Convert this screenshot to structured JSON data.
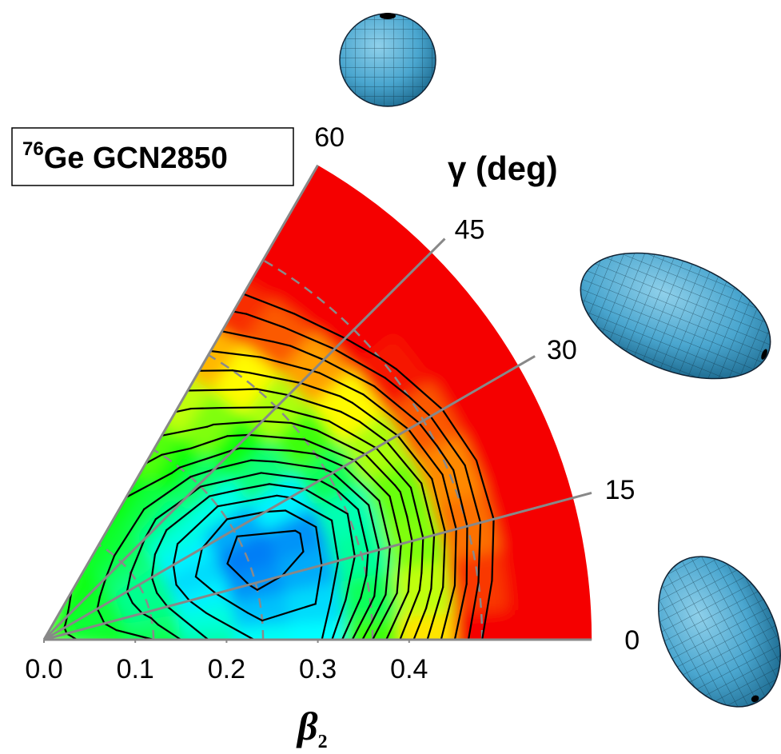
{
  "chart_data": {
    "type": "polar_contour",
    "title": {
      "mass": "76",
      "text": "Ge GCN2850"
    },
    "x_label": {
      "symbol": "β",
      "sub": "2"
    },
    "y_label": "γ (deg)",
    "xlim": [
      0,
      0.6
    ],
    "xticks": [
      {
        "value": 0,
        "label": "0.0"
      },
      0.1,
      0.2,
      0.3,
      0.4
    ],
    "ylim": [
      0,
      60
    ],
    "yticks": [
      0,
      15,
      30,
      45,
      60
    ],
    "reference_circles": [
      0.12,
      0.24,
      0.36,
      0.48
    ],
    "beta": [
      0,
      0.06,
      0.12,
      0.18,
      0.24,
      0.3,
      0.36,
      0.42,
      0.48,
      0.54,
      0.6
    ],
    "gamma": [
      0,
      7.5,
      15,
      22.5,
      30,
      37.5,
      45,
      52.5,
      60
    ],
    "energy": [
      [
        3.8,
        3.3,
        3.0,
        2.0,
        1.4,
        1.3,
        4.0,
        6.0,
        8.0,
        10.0,
        12.0
      ],
      [
        3.8,
        3.2,
        2.6,
        1.6,
        0.8,
        1.0,
        2.8,
        5.2,
        7.5,
        9.5,
        11.5
      ],
      [
        3.8,
        3.1,
        2.4,
        1.2,
        0.4,
        0.6,
        2.2,
        4.6,
        7.0,
        9.0,
        11.0
      ],
      [
        3.8,
        3.1,
        2.3,
        1.0,
        0.2,
        0.4,
        2.0,
        4.4,
        6.8,
        9.0,
        11.0
      ],
      [
        3.8,
        3.1,
        2.3,
        1.2,
        0.6,
        1.2,
        2.8,
        5.0,
        7.2,
        9.2,
        11.2
      ],
      [
        3.8,
        3.2,
        2.5,
        1.6,
        1.5,
        2.5,
        4.0,
        5.8,
        7.8,
        9.6,
        11.6
      ],
      [
        3.8,
        3.3,
        2.8,
        2.3,
        2.6,
        3.6,
        5.0,
        6.6,
        8.4,
        10.0,
        12.0
      ],
      [
        3.8,
        3.4,
        3.1,
        3.0,
        3.6,
        4.6,
        5.8,
        7.2,
        8.8,
        10.4,
        12.2
      ],
      [
        3.8,
        3.5,
        3.3,
        3.5,
        4.2,
        5.2,
        6.4,
        7.6,
        9.0,
        10.6,
        12.4
      ]
    ],
    "color_range": [
      0,
      8
    ],
    "contour_levels": [
      0.5,
      1,
      1.5,
      2,
      2.5,
      3,
      3.5,
      4,
      4.5,
      5,
      5.5,
      6,
      6.5,
      7,
      7.5,
      8
    ]
  }
}
